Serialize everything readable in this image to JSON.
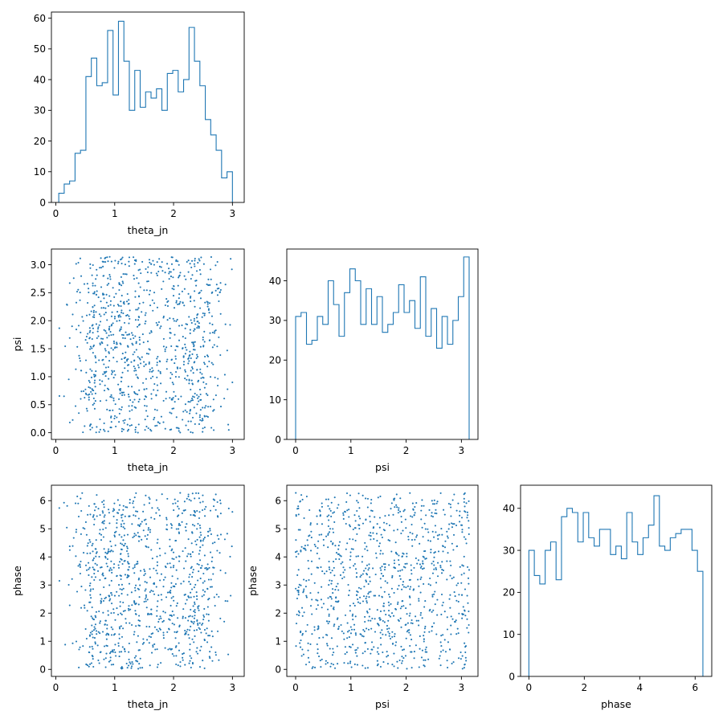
{
  "colors": {
    "series": "#1f77b4",
    "axis": "#000000",
    "background": "#ffffff"
  },
  "chart_data": [
    {
      "id": "hist-theta_jn",
      "type": "histogram",
      "xlabel": "theta_jn",
      "ylabel": "",
      "xlim": [
        -0.075,
        3.2
      ],
      "ylim": [
        0,
        62
      ],
      "xticks": [
        0,
        1,
        2,
        3
      ],
      "yticks": [
        0,
        10,
        20,
        30,
        40,
        50,
        60
      ],
      "bin_range": [
        0.05,
        3.0
      ],
      "counts": [
        3,
        6,
        7,
        16,
        17,
        41,
        47,
        38,
        39,
        56,
        35,
        59,
        46,
        30,
        43,
        31,
        36,
        34,
        37,
        30,
        42,
        43,
        36,
        40,
        57,
        46,
        38,
        27,
        22,
        17,
        8,
        10
      ]
    },
    {
      "id": "scatter-theta_jn-psi",
      "type": "scatter",
      "xlabel": "theta_jn",
      "ylabel": "psi",
      "xlim": [
        -0.075,
        3.2
      ],
      "ylim": [
        -0.12,
        3.28
      ],
      "xticks": [
        0,
        1,
        2,
        3
      ],
      "yticks": [
        0.0,
        0.5,
        1.0,
        1.5,
        2.0,
        2.5,
        3.0
      ],
      "ytick_labels": [
        "0.0",
        "0.5",
        "1.0",
        "1.5",
        "2.0",
        "2.5",
        "3.0"
      ],
      "n_points": 1000
    },
    {
      "id": "hist-psi",
      "type": "histogram",
      "xlabel": "psi",
      "ylabel": "",
      "xlim": [
        -0.16,
        3.3
      ],
      "ylim": [
        0,
        48
      ],
      "xticks": [
        0,
        1,
        2,
        3
      ],
      "yticks": [
        0,
        10,
        20,
        30,
        40
      ],
      "bin_range": [
        0.0,
        3.14
      ],
      "counts": [
        31,
        32,
        24,
        25,
        31,
        29,
        40,
        34,
        26,
        37,
        43,
        40,
        29,
        38,
        29,
        36,
        27,
        29,
        32,
        39,
        32,
        35,
        28,
        41,
        26,
        33,
        23,
        31,
        24,
        30,
        36,
        46
      ]
    },
    {
      "id": "scatter-theta_jn-phase",
      "type": "scatter",
      "xlabel": "theta_jn",
      "ylabel": "phase",
      "xlim": [
        -0.075,
        3.2
      ],
      "ylim": [
        -0.25,
        6.55
      ],
      "xticks": [
        0,
        1,
        2,
        3
      ],
      "yticks": [
        0,
        1,
        2,
        3,
        4,
        5,
        6
      ],
      "n_points": 1000
    },
    {
      "id": "scatter-psi-phase",
      "type": "scatter",
      "xlabel": "psi",
      "ylabel": "phase",
      "xlim": [
        -0.16,
        3.3
      ],
      "ylim": [
        -0.25,
        6.55
      ],
      "xticks": [
        0,
        1,
        2,
        3
      ],
      "yticks": [
        0,
        1,
        2,
        3,
        4,
        5,
        6
      ],
      "n_points": 1000
    },
    {
      "id": "hist-phase",
      "type": "histogram",
      "xlabel": "phase",
      "ylabel": "",
      "xlim": [
        -0.3,
        6.6
      ],
      "ylim": [
        0,
        45.5
      ],
      "xticks": [
        0,
        2,
        4,
        6
      ],
      "yticks": [
        0,
        10,
        20,
        30,
        40
      ],
      "bin_range": [
        0.0,
        6.28
      ],
      "counts": [
        30,
        24,
        22,
        30,
        32,
        23,
        38,
        40,
        39,
        32,
        39,
        33,
        31,
        35,
        35,
        29,
        31,
        28,
        39,
        32,
        29,
        33,
        36,
        43,
        31,
        30,
        33,
        34,
        35,
        35,
        30,
        25
      ]
    }
  ]
}
